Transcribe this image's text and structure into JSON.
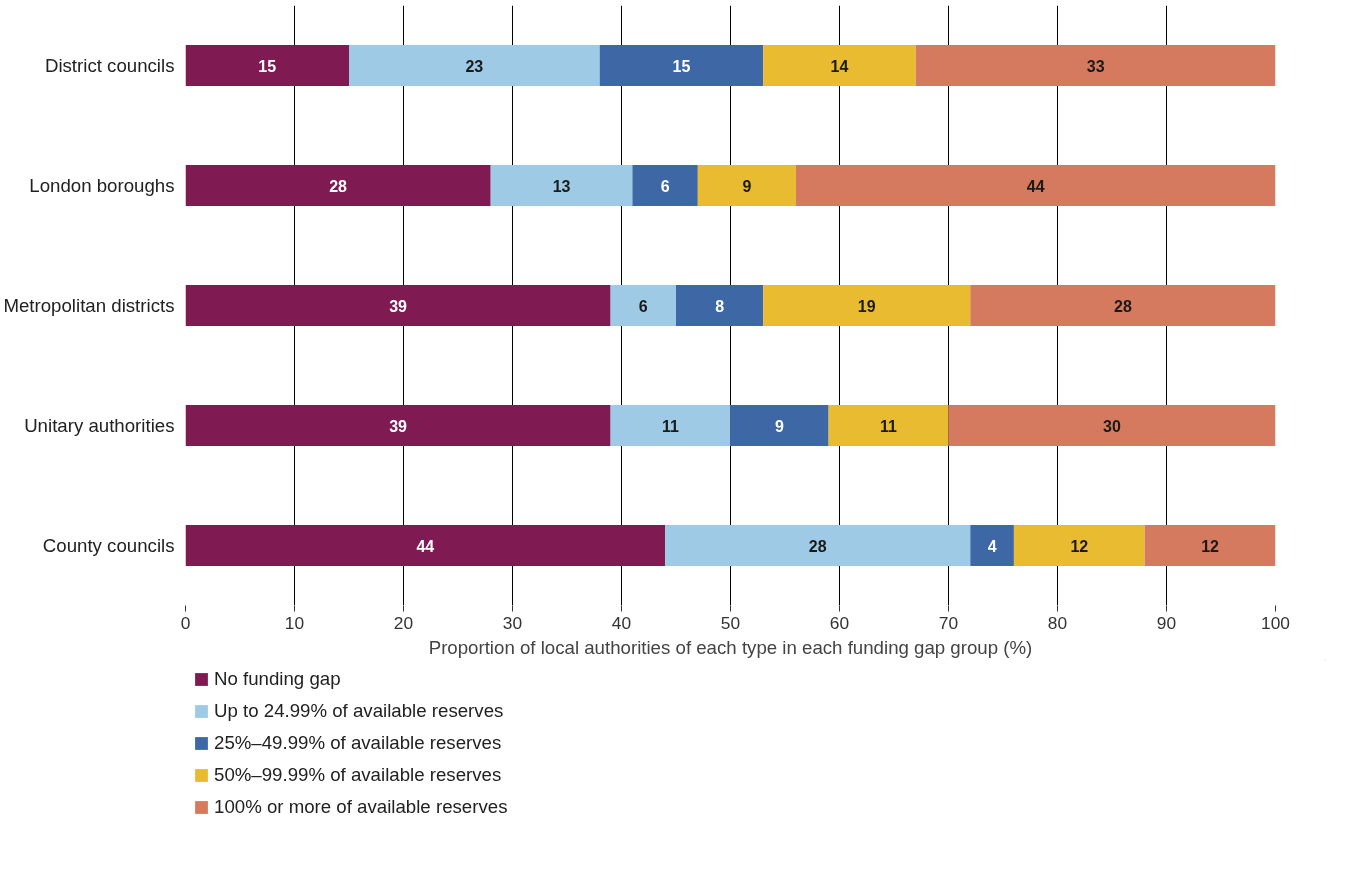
{
  "chart_data": {
    "type": "bar",
    "orientation": "horizontal",
    "stacked": true,
    "data_labels": true,
    "grid": "x",
    "legend": "bottom left",
    "xlabel": "Proportion of local authorities of each type in each funding gap group (%)",
    "categories": [
      "District councils",
      "London boroughs",
      "Metropolitan districts",
      "Unitary authorities",
      "County councils"
    ],
    "xlim": [
      0,
      100
    ],
    "xticks": [
      0,
      10,
      20,
      30,
      40,
      50,
      60,
      70,
      80,
      90,
      100
    ],
    "series": [
      {
        "name": "No funding gap",
        "color": "#7f1a52",
        "values": [
          15,
          28,
          39,
          39,
          44
        ]
      },
      {
        "name": "Up to 24.99% of available reserves",
        "color": "#9ecae6",
        "values": [
          23,
          13,
          6,
          11,
          28
        ]
      },
      {
        "name": "25%–49.99% of available reserves",
        "color": "#3d67a5",
        "values": [
          15,
          6,
          8,
          9,
          4
        ]
      },
      {
        "name": "50%–99.99% of available reserves",
        "color": "#e9bb30",
        "values": [
          14,
          9,
          19,
          11,
          12
        ]
      },
      {
        "name": "100% or more of available reserves",
        "color": "#d57a5e",
        "values": [
          33,
          44,
          28,
          30,
          12
        ]
      }
    ]
  }
}
